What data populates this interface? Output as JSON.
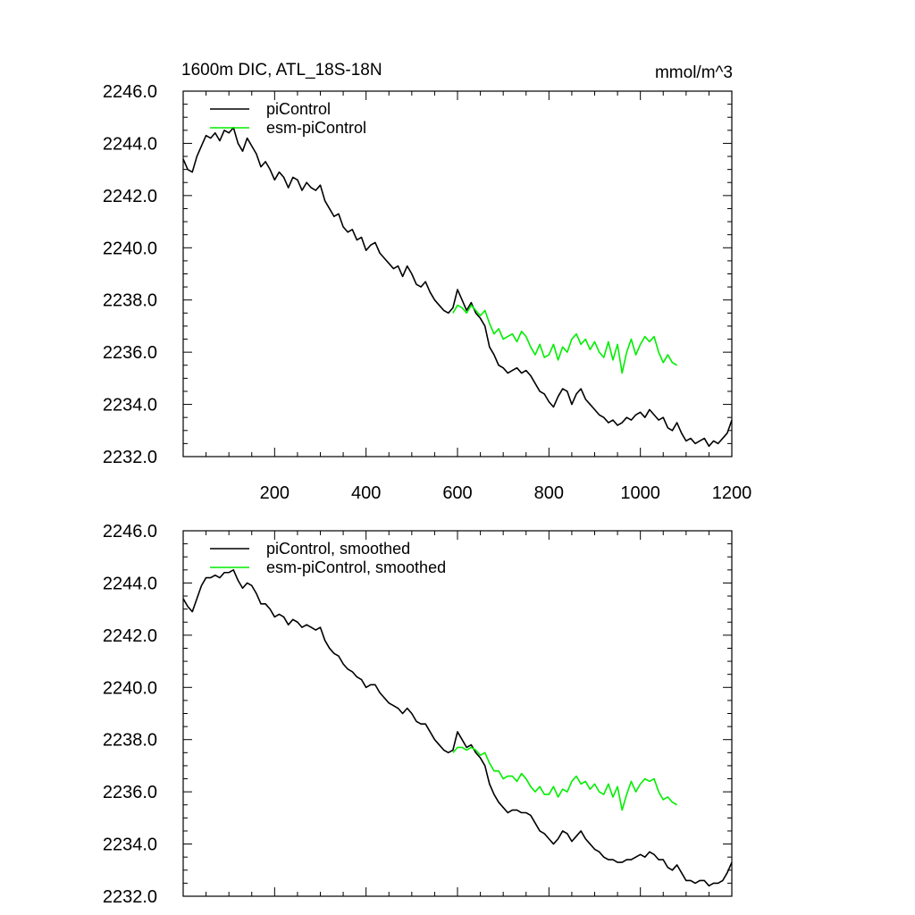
{
  "chart_data": [
    {
      "type": "line",
      "title": "1600m DIC, ATL_18S-18N",
      "units": "mmol/m^3",
      "xlabel": "",
      "ylabel": "",
      "xlim": [
        0,
        1200
      ],
      "ylim": [
        2232.0,
        2246.0
      ],
      "x_ticks": [
        200,
        400,
        600,
        800,
        1000,
        1200
      ],
      "x_tick_labels": [
        "200",
        "400",
        "600",
        "800",
        "1000",
        "1200"
      ],
      "y_ticks": [
        2232.0,
        2234.0,
        2236.0,
        2238.0,
        2240.0,
        2242.0,
        2244.0,
        2246.0
      ],
      "y_tick_labels": [
        "2232.0",
        "2234.0",
        "2236.0",
        "2238.0",
        "2240.0",
        "2242.0",
        "2244.0",
        "2246.0"
      ],
      "grid": false,
      "legend_position": "top-left",
      "series": [
        {
          "name": "piControl",
          "color": "#000000",
          "x": [
            0,
            10,
            20,
            30,
            40,
            50,
            60,
            70,
            80,
            90,
            100,
            110,
            120,
            130,
            140,
            150,
            160,
            170,
            180,
            190,
            200,
            210,
            220,
            230,
            240,
            250,
            260,
            270,
            280,
            290,
            300,
            310,
            320,
            330,
            340,
            350,
            360,
            370,
            380,
            390,
            400,
            410,
            420,
            430,
            440,
            450,
            460,
            470,
            480,
            490,
            500,
            510,
            520,
            530,
            540,
            550,
            560,
            570,
            580,
            590,
            600,
            610,
            620,
            630,
            640,
            650,
            660,
            670,
            680,
            690,
            700,
            710,
            720,
            730,
            740,
            750,
            760,
            770,
            780,
            790,
            800,
            810,
            820,
            830,
            840,
            850,
            860,
            870,
            880,
            890,
            900,
            910,
            920,
            930,
            940,
            950,
            960,
            970,
            980,
            990,
            1000,
            1010,
            1020,
            1030,
            1040,
            1050,
            1060,
            1070,
            1080,
            1090,
            1100,
            1110,
            1120,
            1130,
            1140,
            1150,
            1160,
            1170,
            1180,
            1190,
            1200
          ],
          "values": [
            2243.4,
            2243.0,
            2242.9,
            2243.5,
            2243.9,
            2244.3,
            2244.2,
            2244.4,
            2244.1,
            2244.5,
            2244.4,
            2244.6,
            2244.0,
            2243.7,
            2244.2,
            2243.9,
            2243.6,
            2243.1,
            2243.3,
            2243.0,
            2242.6,
            2242.9,
            2242.7,
            2242.3,
            2242.7,
            2242.6,
            2242.2,
            2242.5,
            2242.3,
            2242.2,
            2242.4,
            2241.8,
            2241.5,
            2241.2,
            2241.3,
            2240.8,
            2240.6,
            2240.7,
            2240.3,
            2240.4,
            2239.9,
            2240.1,
            2240.2,
            2239.8,
            2239.6,
            2239.4,
            2239.2,
            2239.3,
            2238.9,
            2239.3,
            2239.0,
            2238.6,
            2238.5,
            2238.7,
            2238.3,
            2238.0,
            2237.8,
            2237.6,
            2237.5,
            2237.7,
            2238.4,
            2238.0,
            2237.6,
            2237.9,
            2237.5,
            2237.3,
            2237.0,
            2236.2,
            2235.9,
            2235.5,
            2235.4,
            2235.2,
            2235.3,
            2235.4,
            2235.2,
            2235.3,
            2235.1,
            2234.8,
            2234.5,
            2234.4,
            2234.1,
            2233.9,
            2234.3,
            2234.6,
            2234.5,
            2234.0,
            2234.4,
            2234.6,
            2234.2,
            2234.0,
            2233.8,
            2233.6,
            2233.5,
            2233.3,
            2233.4,
            2233.2,
            2233.3,
            2233.5,
            2233.4,
            2233.6,
            2233.7,
            2233.5,
            2233.8,
            2233.6,
            2233.4,
            2233.5,
            2233.1,
            2233.0,
            2233.3,
            2232.9,
            2232.6,
            2232.7,
            2232.5,
            2232.6,
            2232.7,
            2232.4,
            2232.6,
            2232.5,
            2232.7,
            2232.9,
            2233.4
          ]
        },
        {
          "name": "esm-piControl",
          "color": "#00ee00",
          "x": [
            590,
            600,
            610,
            620,
            630,
            640,
            650,
            660,
            670,
            680,
            690,
            700,
            710,
            720,
            730,
            740,
            750,
            760,
            770,
            780,
            790,
            800,
            810,
            820,
            830,
            840,
            850,
            860,
            870,
            880,
            890,
            900,
            910,
            920,
            930,
            940,
            950,
            960,
            970,
            980,
            990,
            1000,
            1010,
            1020,
            1030,
            1040,
            1050,
            1060,
            1070,
            1080
          ],
          "values": [
            2237.5,
            2237.8,
            2237.7,
            2237.5,
            2237.8,
            2237.6,
            2237.4,
            2237.6,
            2237.1,
            2236.7,
            2236.9,
            2236.5,
            2236.6,
            2236.7,
            2236.4,
            2236.8,
            2236.6,
            2236.2,
            2235.9,
            2236.3,
            2235.8,
            2235.9,
            2236.3,
            2235.7,
            2236.2,
            2236.0,
            2236.5,
            2236.7,
            2236.3,
            2236.5,
            2236.1,
            2236.4,
            2236.0,
            2235.8,
            2236.4,
            2235.7,
            2236.3,
            2235.2,
            2236.0,
            2236.5,
            2235.9,
            2236.3,
            2236.6,
            2236.4,
            2236.6,
            2236.0,
            2235.6,
            2235.9,
            2235.6,
            2235.5
          ]
        }
      ]
    },
    {
      "type": "line",
      "title": "",
      "xlabel": "",
      "ylabel": "",
      "xlim": [
        0,
        1200
      ],
      "ylim": [
        2232.0,
        2246.0
      ],
      "y_ticks": [
        2232.0,
        2234.0,
        2236.0,
        2238.0,
        2240.0,
        2242.0,
        2244.0,
        2246.0
      ],
      "y_tick_labels": [
        "2232.0",
        "2234.0",
        "2236.0",
        "2238.0",
        "2240.0",
        "2242.0",
        "2244.0",
        "2246.0"
      ],
      "grid": false,
      "legend_position": "top-left",
      "series": [
        {
          "name": "piControl, smoothed",
          "color": "#000000",
          "x": [
            0,
            10,
            20,
            30,
            40,
            50,
            60,
            70,
            80,
            90,
            100,
            110,
            120,
            130,
            140,
            150,
            160,
            170,
            180,
            190,
            200,
            210,
            220,
            230,
            240,
            250,
            260,
            270,
            280,
            290,
            300,
            310,
            320,
            330,
            340,
            350,
            360,
            370,
            380,
            390,
            400,
            410,
            420,
            430,
            440,
            450,
            460,
            470,
            480,
            490,
            500,
            510,
            520,
            530,
            540,
            550,
            560,
            570,
            580,
            590,
            600,
            610,
            620,
            630,
            640,
            650,
            660,
            670,
            680,
            690,
            700,
            710,
            720,
            730,
            740,
            750,
            760,
            770,
            780,
            790,
            800,
            810,
            820,
            830,
            840,
            850,
            860,
            870,
            880,
            890,
            900,
            910,
            920,
            930,
            940,
            950,
            960,
            970,
            980,
            990,
            1000,
            1010,
            1020,
            1030,
            1040,
            1050,
            1060,
            1070,
            1080,
            1090,
            1100,
            1110,
            1120,
            1130,
            1140,
            1150,
            1160,
            1170,
            1180,
            1190,
            1200
          ],
          "values": [
            2243.4,
            2243.1,
            2242.9,
            2243.4,
            2243.9,
            2244.2,
            2244.2,
            2244.3,
            2244.2,
            2244.4,
            2244.4,
            2244.5,
            2244.1,
            2243.8,
            2244.0,
            2243.9,
            2243.6,
            2243.2,
            2243.2,
            2243.0,
            2242.7,
            2242.8,
            2242.7,
            2242.4,
            2242.6,
            2242.5,
            2242.3,
            2242.4,
            2242.3,
            2242.2,
            2242.3,
            2241.8,
            2241.5,
            2241.3,
            2241.2,
            2240.9,
            2240.7,
            2240.6,
            2240.4,
            2240.3,
            2240.0,
            2240.1,
            2240.1,
            2239.8,
            2239.6,
            2239.4,
            2239.3,
            2239.2,
            2239.0,
            2239.2,
            2239.0,
            2238.7,
            2238.6,
            2238.6,
            2238.3,
            2238.0,
            2237.8,
            2237.6,
            2237.5,
            2237.6,
            2238.3,
            2238.0,
            2237.7,
            2237.8,
            2237.5,
            2237.3,
            2237.0,
            2236.3,
            2235.9,
            2235.6,
            2235.4,
            2235.2,
            2235.3,
            2235.3,
            2235.2,
            2235.2,
            2235.1,
            2234.8,
            2234.5,
            2234.4,
            2234.2,
            2234.0,
            2234.2,
            2234.5,
            2234.4,
            2234.1,
            2234.3,
            2234.5,
            2234.2,
            2234.0,
            2233.8,
            2233.7,
            2233.5,
            2233.4,
            2233.4,
            2233.3,
            2233.3,
            2233.4,
            2233.4,
            2233.5,
            2233.6,
            2233.5,
            2233.7,
            2233.6,
            2233.4,
            2233.4,
            2233.1,
            2233.0,
            2233.2,
            2232.9,
            2232.6,
            2232.6,
            2232.5,
            2232.6,
            2232.6,
            2232.4,
            2232.5,
            2232.5,
            2232.6,
            2232.9,
            2233.3
          ]
        },
        {
          "name": "esm-piControl, smoothed",
          "color": "#00ee00",
          "x": [
            590,
            600,
            610,
            620,
            630,
            640,
            650,
            660,
            670,
            680,
            690,
            700,
            710,
            720,
            730,
            740,
            750,
            760,
            770,
            780,
            790,
            800,
            810,
            820,
            830,
            840,
            850,
            860,
            870,
            880,
            890,
            900,
            910,
            920,
            930,
            940,
            950,
            960,
            970,
            980,
            990,
            1000,
            1010,
            1020,
            1030,
            1040,
            1050,
            1060,
            1070,
            1080
          ],
          "values": [
            2237.5,
            2237.7,
            2237.7,
            2237.6,
            2237.7,
            2237.6,
            2237.4,
            2237.5,
            2237.1,
            2236.8,
            2236.8,
            2236.5,
            2236.6,
            2236.6,
            2236.4,
            2236.7,
            2236.5,
            2236.2,
            2236.0,
            2236.2,
            2235.9,
            2235.9,
            2236.2,
            2235.8,
            2236.1,
            2236.0,
            2236.4,
            2236.6,
            2236.3,
            2236.4,
            2236.1,
            2236.3,
            2236.0,
            2235.9,
            2236.3,
            2235.8,
            2236.2,
            2235.3,
            2235.9,
            2236.4,
            2236.0,
            2236.3,
            2236.5,
            2236.4,
            2236.5,
            2236.0,
            2235.7,
            2235.8,
            2235.6,
            2235.5
          ]
        }
      ]
    }
  ]
}
